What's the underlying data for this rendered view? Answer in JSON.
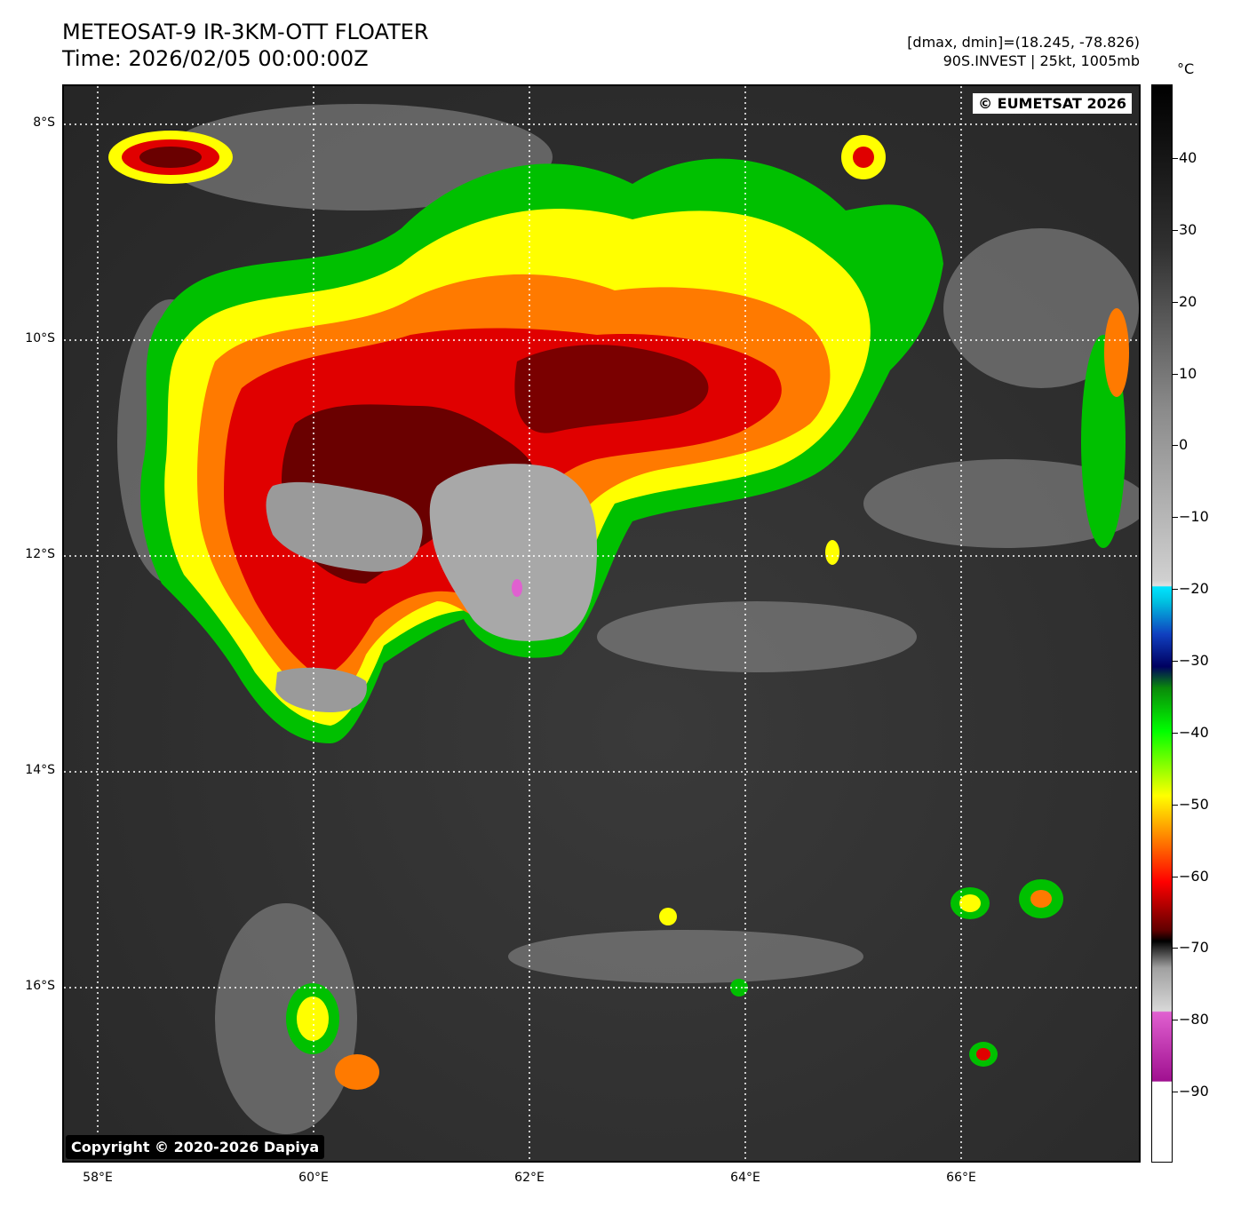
{
  "header": {
    "title": "METEOSAT-9 IR-3KM-OTT FLOATER",
    "time": "Time: 2026/02/05 00:00:00Z",
    "range": "[dmax, dmin]=(18.245, -78.826)",
    "storm": "90S.INVEST | 25kt, 1005mb"
  },
  "map": {
    "copyright_top": "© EUMETSAT 2026",
    "copyright_bottom": "Copyright © 2020-2026 Dapiya",
    "lat_labels": [
      "8°S",
      "10°S",
      "12°S",
      "14°S",
      "16°S"
    ],
    "lon_labels": [
      "58°E",
      "60°E",
      "62°E",
      "64°E",
      "66°E"
    ]
  },
  "colorbar": {
    "unit": "°C",
    "labels": [
      "40",
      "30",
      "20",
      "10",
      "0",
      "−10",
      "−20",
      "−30",
      "−40",
      "−50",
      "−60",
      "−70",
      "−80",
      "−90"
    ],
    "colors": {
      "warm": "#000000",
      "mid": "#8a8a8a",
      "cold_gray": "#d0d0d0",
      "cyan": "#00e5ff",
      "blue": "#1040c0",
      "navy": "#000060",
      "green": "#00ff00",
      "yellow": "#ffff00",
      "orange": "#ff8000",
      "red": "#ff0000",
      "darkred": "#600000",
      "magenta": "#e060d0",
      "purple": "#a01090"
    }
  }
}
